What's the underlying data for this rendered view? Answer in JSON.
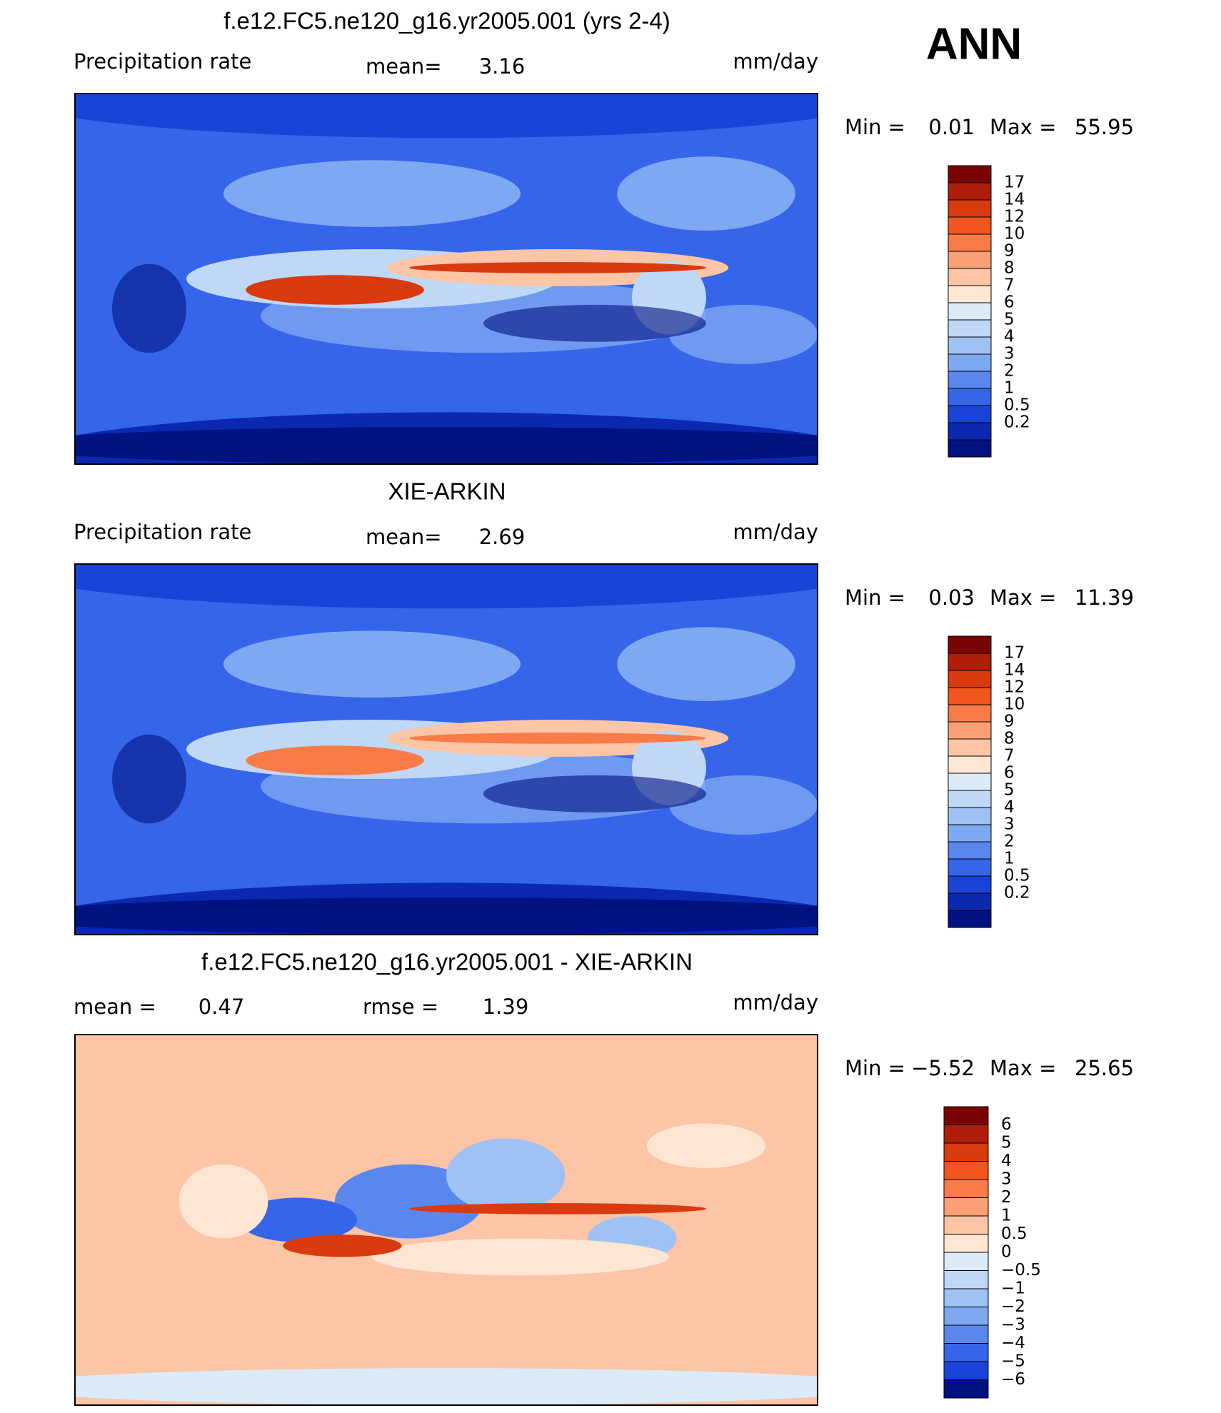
{
  "header": {
    "season": "ANN"
  },
  "panels": [
    {
      "title": "f.e12.FC5.ne120_g16.yr2005.001 (yrs 2-4)",
      "left_label": "Precipitation rate",
      "stat_label": "mean=",
      "stat_value": "3.16",
      "units": "mm/day",
      "min_label": "Min =",
      "min_value": "0.01",
      "max_label": "Max =",
      "max_value": "55.95",
      "colorbar": {
        "labels": [
          "17",
          "14",
          "12",
          "10",
          "9",
          "8",
          "7",
          "6",
          "5",
          "4",
          "3",
          "2",
          "1",
          "0.5",
          "0.2"
        ],
        "colors": [
          "#7a0403",
          "#b01d08",
          "#d93a0f",
          "#f0561d",
          "#f87b48",
          "#faa077",
          "#fcc5a5",
          "#fde6d3",
          "#dcebf8",
          "#bfd8f6",
          "#9fc2f5",
          "#7fa8f2",
          "#5a87ee",
          "#3566ea",
          "#1a44d8",
          "#0a28b0",
          "#001180"
        ]
      }
    },
    {
      "title": "XIE-ARKIN",
      "left_label": "Precipitation rate",
      "stat_label": "mean=",
      "stat_value": "2.69",
      "units": "mm/day",
      "min_label": "Min =",
      "min_value": "0.03",
      "max_label": "Max =",
      "max_value": "11.39",
      "colorbar": {
        "labels": [
          "17",
          "14",
          "12",
          "10",
          "9",
          "8",
          "7",
          "6",
          "5",
          "4",
          "3",
          "2",
          "1",
          "0.5",
          "0.2"
        ],
        "colors": [
          "#7a0403",
          "#b01d08",
          "#d93a0f",
          "#f0561d",
          "#f87b48",
          "#faa077",
          "#fcc5a5",
          "#fde6d3",
          "#dcebf8",
          "#bfd8f6",
          "#9fc2f5",
          "#7fa8f2",
          "#5a87ee",
          "#3566ea",
          "#1a44d8",
          "#0a28b0",
          "#001180"
        ]
      }
    },
    {
      "title": "f.e12.FC5.ne120_g16.yr2005.001 - XIE-ARKIN",
      "left_label": "mean =",
      "left_value": "0.47",
      "stat_label": "rmse =",
      "stat_value": "1.39",
      "units": "mm/day",
      "min_label": "Min =",
      "min_value": "−5.52",
      "max_label": "Max =",
      "max_value": "25.65",
      "colorbar": {
        "labels": [
          "6",
          "5",
          "4",
          "3",
          "2",
          "1",
          "0.5",
          "0",
          "−0.5",
          "−1",
          "−2",
          "−3",
          "−4",
          "−5",
          "−6"
        ],
        "colors": [
          "#7a0403",
          "#b01d08",
          "#d93a0f",
          "#f0561d",
          "#f87b48",
          "#faa077",
          "#fcc5a5",
          "#fde6d3",
          "#dcebf8",
          "#bfd8f6",
          "#9fc2f5",
          "#7fa8f2",
          "#5a87ee",
          "#3566ea",
          "#1a44d8",
          "#001180"
        ]
      }
    }
  ]
}
